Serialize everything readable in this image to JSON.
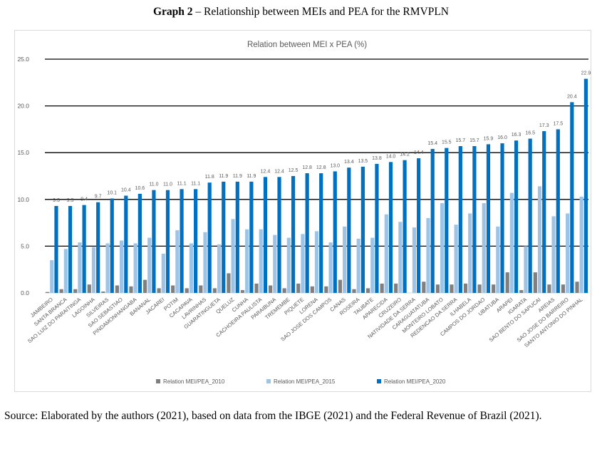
{
  "caption": {
    "label": "Graph 2",
    "text": " – Relationship between MEIs and PEA for the RMVPLN"
  },
  "source": "Source: Elaborated by the authors (2021), based on data from the IBGE (2021) and the Federal Revenue of Brazil (2021).",
  "chart_data": {
    "type": "bar",
    "title": "Relation between MEI x PEA (%)",
    "xlabel": "",
    "ylabel": "",
    "ylim": [
      0,
      25
    ],
    "yticks": [
      "0.0",
      "5.0",
      "10.0",
      "15.0",
      "20.0",
      "25.0"
    ],
    "grid": true,
    "legend_position": "bottom",
    "categories": [
      "JAMBEIRO",
      "SANTA BRANCA",
      "SAO LUIZ DO PARAITINGA",
      "LAGOINHA",
      "SILVEIRAS",
      "SAO SEBASTIAO",
      "PINDAMONHANGABA",
      "BANANAL",
      "JACAREI",
      "POTIM",
      "CACAPAVA",
      "LAVRINHAS",
      "GUARATINGUETA",
      "QUELUZ",
      "CUNHA",
      "CACHOEIRA PAULISTA",
      "PARAIBUNA",
      "TREMEMBE",
      "PIQUETE",
      "LORENA",
      "SAO JOSE DOS CAMPOS",
      "CANAS",
      "ROSEIRA",
      "TAUBATE",
      "APARECIDA",
      "CRUZEIRO",
      "NATIVIDADE DA SERRA",
      "CARAGUATATUBA",
      "MONTEIRO LOBATO",
      "REDENCAO DA SERRA",
      "ILHABELA",
      "CAMPOS DO JORDAO",
      "UBATUBA",
      "ARAPEI",
      "IGARATA",
      "SAO BENTO DO SAPUCAI",
      "AREIAS",
      "SAO JOSE DO BARREIRO",
      "SANTO ANTONIO DO PINHAL"
    ],
    "series": [
      {
        "name": "Relation MEI/PEA_2010",
        "color": "#7f7f7f",
        "values": [
          0.1,
          0.4,
          0.4,
          0.9,
          0.15,
          0.8,
          0.7,
          1.4,
          0.5,
          0.8,
          0.5,
          0.8,
          0.5,
          2.1,
          0.3,
          1.0,
          0.8,
          0.5,
          1.0,
          0.7,
          0.7,
          1.4,
          0.4,
          0.5,
          1.0,
          1.0,
          0.0,
          1.2,
          0.9,
          0.9,
          1.0,
          0.9,
          0.9,
          2.2,
          0.3,
          2.2,
          0.9,
          0.9,
          1.2
        ]
      },
      {
        "name": "Relation MEI/PEA_2015",
        "color": "#9dc3e6",
        "values": [
          3.5,
          4.7,
          5.4,
          4.9,
          5.3,
          5.6,
          5.3,
          5.9,
          4.2,
          6.7,
          5.3,
          6.5,
          5.2,
          7.9,
          6.8,
          6.8,
          6.2,
          5.9,
          6.3,
          6.6,
          5.4,
          7.1,
          5.8,
          5.9,
          8.4,
          7.6,
          7.0,
          8.0,
          9.6,
          7.3,
          8.5,
          9.6,
          7.1,
          10.7,
          5.0,
          11.4,
          8.2,
          8.5,
          10.3
        ]
      },
      {
        "name": "Relation MEI/PEA_2020",
        "color": "#0070c0",
        "values": [
          9.3,
          9.3,
          9.4,
          9.7,
          10.1,
          10.4,
          10.6,
          11.0,
          11.0,
          11.1,
          11.1,
          11.8,
          11.9,
          11.9,
          11.9,
          12.4,
          12.4,
          12.5,
          12.8,
          12.8,
          13.0,
          13.4,
          13.5,
          13.8,
          14.0,
          14.2,
          14.4,
          15.4,
          15.5,
          15.7,
          15.7,
          15.9,
          16.0,
          16.3,
          16.5,
          17.3,
          17.5,
          20.4,
          22.9
        ],
        "data_labels": [
          "9.3",
          "9.3",
          "9.4",
          "9.7",
          "10.1",
          "10.4",
          "10.6",
          "11.0",
          "11.0",
          "11.1",
          "11.1",
          "11.8",
          "11.9",
          "11.9",
          "11.9",
          "12.4",
          "12.4",
          "12.5",
          "12.8",
          "12.8",
          "13.0",
          "13.4",
          "13.5",
          "13.8",
          "14.0",
          "14.2",
          "14.4",
          "15.4",
          "15.5",
          "15.7",
          "15.7",
          "15.9",
          "16.0",
          "16.3",
          "16.5",
          "17.3",
          "17.5",
          "20.4",
          "22.9"
        ]
      }
    ]
  }
}
